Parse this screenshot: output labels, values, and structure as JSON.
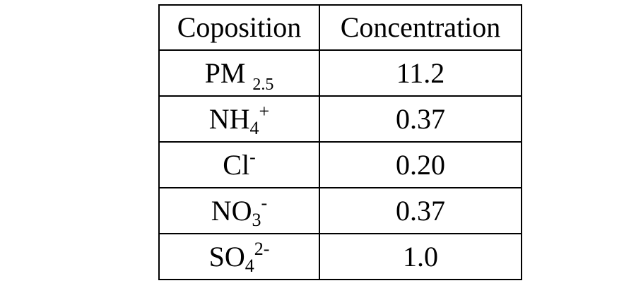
{
  "table": {
    "headers": [
      "Coposition",
      "Concentration"
    ],
    "rows": [
      {
        "base": "PM",
        "sub": "2.5",
        "sup": "",
        "value": "11.2"
      },
      {
        "base": "NH",
        "sub": "4",
        "sup": "+",
        "value": "0.37"
      },
      {
        "base": "Cl",
        "sub": "",
        "sup": "-",
        "value": "0.20"
      },
      {
        "base": "NO",
        "sub": "3",
        "sup": "-",
        "value": "0.37"
      },
      {
        "base": "SO",
        "sub": "4",
        "sup": "2-",
        "value": "1.0"
      }
    ]
  }
}
